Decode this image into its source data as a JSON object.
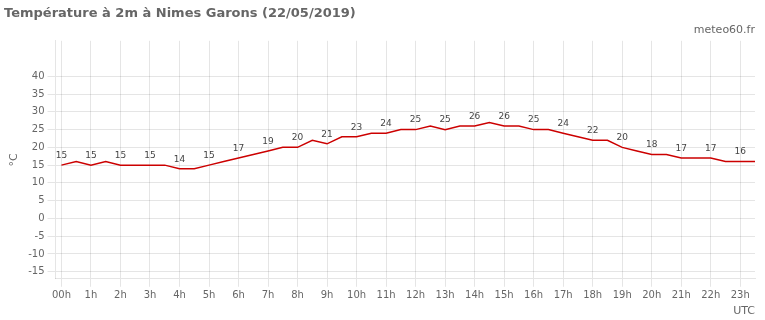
{
  "chart_data": {
    "type": "line",
    "title": "Température à 2m à Nimes Garons (22/05/2019)",
    "subtitle": "meteo60.fr",
    "xlabel": "UTC",
    "ylabel": "°C",
    "x": [
      0,
      0.5,
      1,
      1.5,
      2,
      2.5,
      3,
      3.5,
      4,
      4.5,
      5,
      5.5,
      6,
      6.5,
      7,
      7.5,
      8,
      8.5,
      9,
      9.5,
      10,
      10.5,
      11,
      11.5,
      12,
      12.5,
      13,
      13.5,
      14,
      14.5,
      15,
      15.5,
      16,
      16.5,
      17,
      17.5,
      18,
      18.5,
      19,
      19.5,
      20,
      20.5,
      21,
      21.5,
      22,
      22.5,
      23,
      23.5
    ],
    "values": [
      15,
      16,
      15,
      16,
      15,
      15,
      15,
      15,
      14,
      14,
      15,
      16,
      17,
      18,
      19,
      20,
      20,
      22,
      21,
      23,
      23,
      24,
      24,
      25,
      25,
      26,
      25,
      26,
      26,
      27,
      26,
      26,
      25,
      25,
      24,
      23,
      22,
      22,
      20,
      19,
      18,
      18,
      17,
      17,
      17,
      16,
      16,
      16
    ],
    "color": "#cc0000",
    "xlim": [
      -0.2,
      23.5
    ],
    "xticks": [
      {
        "value": 0,
        "label": "00h"
      },
      {
        "value": 1,
        "label": "1h"
      },
      {
        "value": 2,
        "label": "2h"
      },
      {
        "value": 3,
        "label": "3h"
      },
      {
        "value": 4,
        "label": "4h"
      },
      {
        "value": 5,
        "label": "5h"
      },
      {
        "value": 6,
        "label": "6h"
      },
      {
        "value": 7,
        "label": "7h"
      },
      {
        "value": 8,
        "label": "8h"
      },
      {
        "value": 9,
        "label": "9h"
      },
      {
        "value": 10,
        "label": "10h"
      },
      {
        "value": 11,
        "label": "11h"
      },
      {
        "value": 12,
        "label": "12h"
      },
      {
        "value": 13,
        "label": "13h"
      },
      {
        "value": 14,
        "label": "14h"
      },
      {
        "value": 15,
        "label": "15h"
      },
      {
        "value": 16,
        "label": "16h"
      },
      {
        "value": 17,
        "label": "17h"
      },
      {
        "value": 18,
        "label": "18h"
      },
      {
        "value": 19,
        "label": "19h"
      },
      {
        "value": 20,
        "label": "20h"
      },
      {
        "value": 21,
        "label": "21h"
      },
      {
        "value": 22,
        "label": "22h"
      },
      {
        "value": 23,
        "label": "23h"
      }
    ],
    "ylim": [
      -17,
      50
    ],
    "yticks": [
      -15,
      -10,
      -5,
      0,
      5,
      10,
      15,
      20,
      25,
      30,
      35,
      40
    ],
    "grid": true,
    "annotations": [
      {
        "x": 0,
        "y": 15,
        "text": "15"
      },
      {
        "x": 1,
        "y": 15,
        "text": "15"
      },
      {
        "x": 2,
        "y": 15,
        "text": "15"
      },
      {
        "x": 3,
        "y": 15,
        "text": "15"
      },
      {
        "x": 4,
        "y": 14,
        "text": "14"
      },
      {
        "x": 5,
        "y": 15,
        "text": "15"
      },
      {
        "x": 6,
        "y": 17,
        "text": "17"
      },
      {
        "x": 7,
        "y": 19,
        "text": "19"
      },
      {
        "x": 8,
        "y": 20,
        "text": "20"
      },
      {
        "x": 9,
        "y": 21,
        "text": "21"
      },
      {
        "x": 10,
        "y": 23,
        "text": "23"
      },
      {
        "x": 11,
        "y": 24,
        "text": "24"
      },
      {
        "x": 12,
        "y": 25,
        "text": "25"
      },
      {
        "x": 13,
        "y": 25,
        "text": "25"
      },
      {
        "x": 14,
        "y": 26,
        "text": "26"
      },
      {
        "x": 15,
        "y": 26,
        "text": "26"
      },
      {
        "x": 16,
        "y": 25,
        "text": "25"
      },
      {
        "x": 17,
        "y": 24,
        "text": "24"
      },
      {
        "x": 18,
        "y": 22,
        "text": "22"
      },
      {
        "x": 19,
        "y": 20,
        "text": "20"
      },
      {
        "x": 20,
        "y": 18,
        "text": "18"
      },
      {
        "x": 21,
        "y": 17,
        "text": "17"
      },
      {
        "x": 22,
        "y": 17,
        "text": "17"
      },
      {
        "x": 23,
        "y": 16,
        "text": "16"
      }
    ]
  }
}
